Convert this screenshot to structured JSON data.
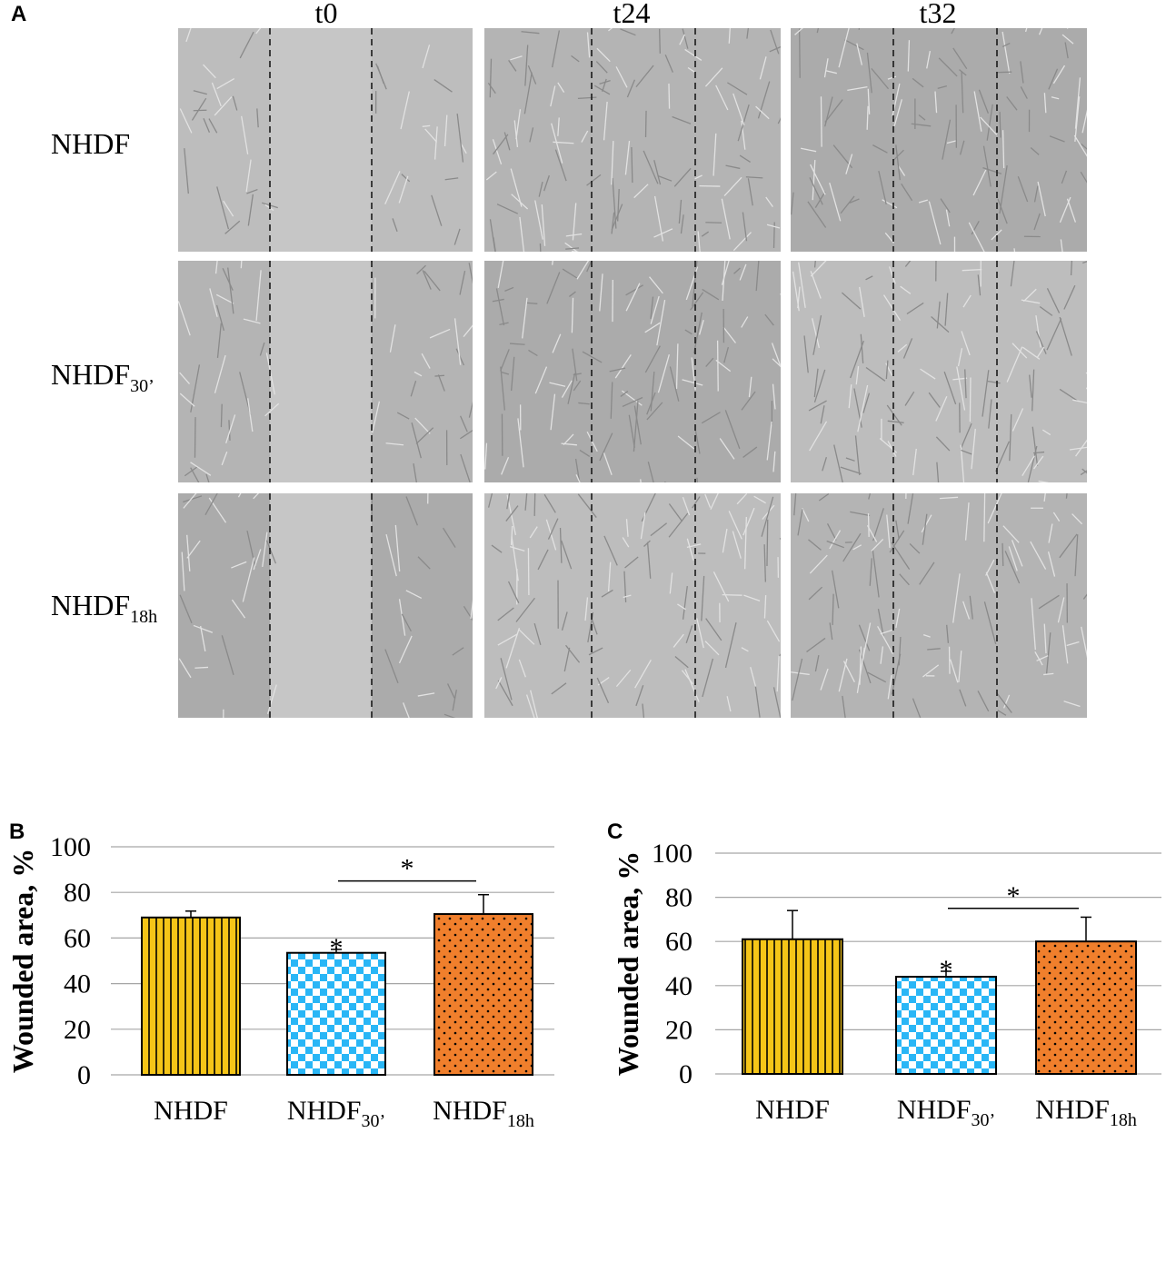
{
  "panel_a": {
    "letter": "A",
    "columns": [
      "t0",
      "t24",
      "t32"
    ],
    "rows": [
      {
        "main": "NHDF",
        "sub": ""
      },
      {
        "main": "NHDF",
        "sub": "30’"
      },
      {
        "main": "NHDF",
        "sub": "18h"
      }
    ]
  },
  "colors": {
    "yellow": "#f5c518",
    "blue": "#29b6f6",
    "orange": "#f07f2c",
    "micro_bg": "#b7b7b7",
    "grid": "#a6a6a6"
  },
  "chart_data": [
    {
      "panel": "B",
      "type": "bar",
      "categories": [
        {
          "main": "NHDF",
          "sub": ""
        },
        {
          "main": "NHDF",
          "sub": "30’"
        },
        {
          "main": "NHDF",
          "sub": "18h"
        }
      ],
      "values": [
        69,
        53.5,
        70.5
      ],
      "errors": [
        2.8,
        1.5,
        8.5
      ],
      "patterns": [
        "stripes",
        "checker",
        "dots"
      ],
      "ylabel": "Wounded area, %",
      "ylim": [
        0,
        100
      ],
      "yticks": [
        0,
        20,
        40,
        60,
        80,
        100
      ],
      "grid": true,
      "annotations": [
        {
          "text": "*",
          "over": "bar",
          "index": 1
        },
        {
          "text": "*",
          "over": "bracket",
          "from": 1,
          "to": 2,
          "y": 85
        }
      ]
    },
    {
      "panel": "C",
      "type": "bar",
      "categories": [
        {
          "main": "NHDF",
          "sub": ""
        },
        {
          "main": "NHDF",
          "sub": "30’"
        },
        {
          "main": "NHDF",
          "sub": "18h"
        }
      ],
      "values": [
        61,
        44,
        60
      ],
      "errors": [
        13,
        2.5,
        11
      ],
      "patterns": [
        "stripes",
        "checker",
        "dots"
      ],
      "ylabel": "Wounded area, %",
      "ylim": [
        0,
        100
      ],
      "yticks": [
        0,
        20,
        40,
        60,
        80,
        100
      ],
      "grid": true,
      "annotations": [
        {
          "text": "*",
          "over": "bar",
          "index": 1
        },
        {
          "text": "*",
          "over": "bracket",
          "from": 1,
          "to": 2,
          "y": 75
        }
      ]
    }
  ]
}
